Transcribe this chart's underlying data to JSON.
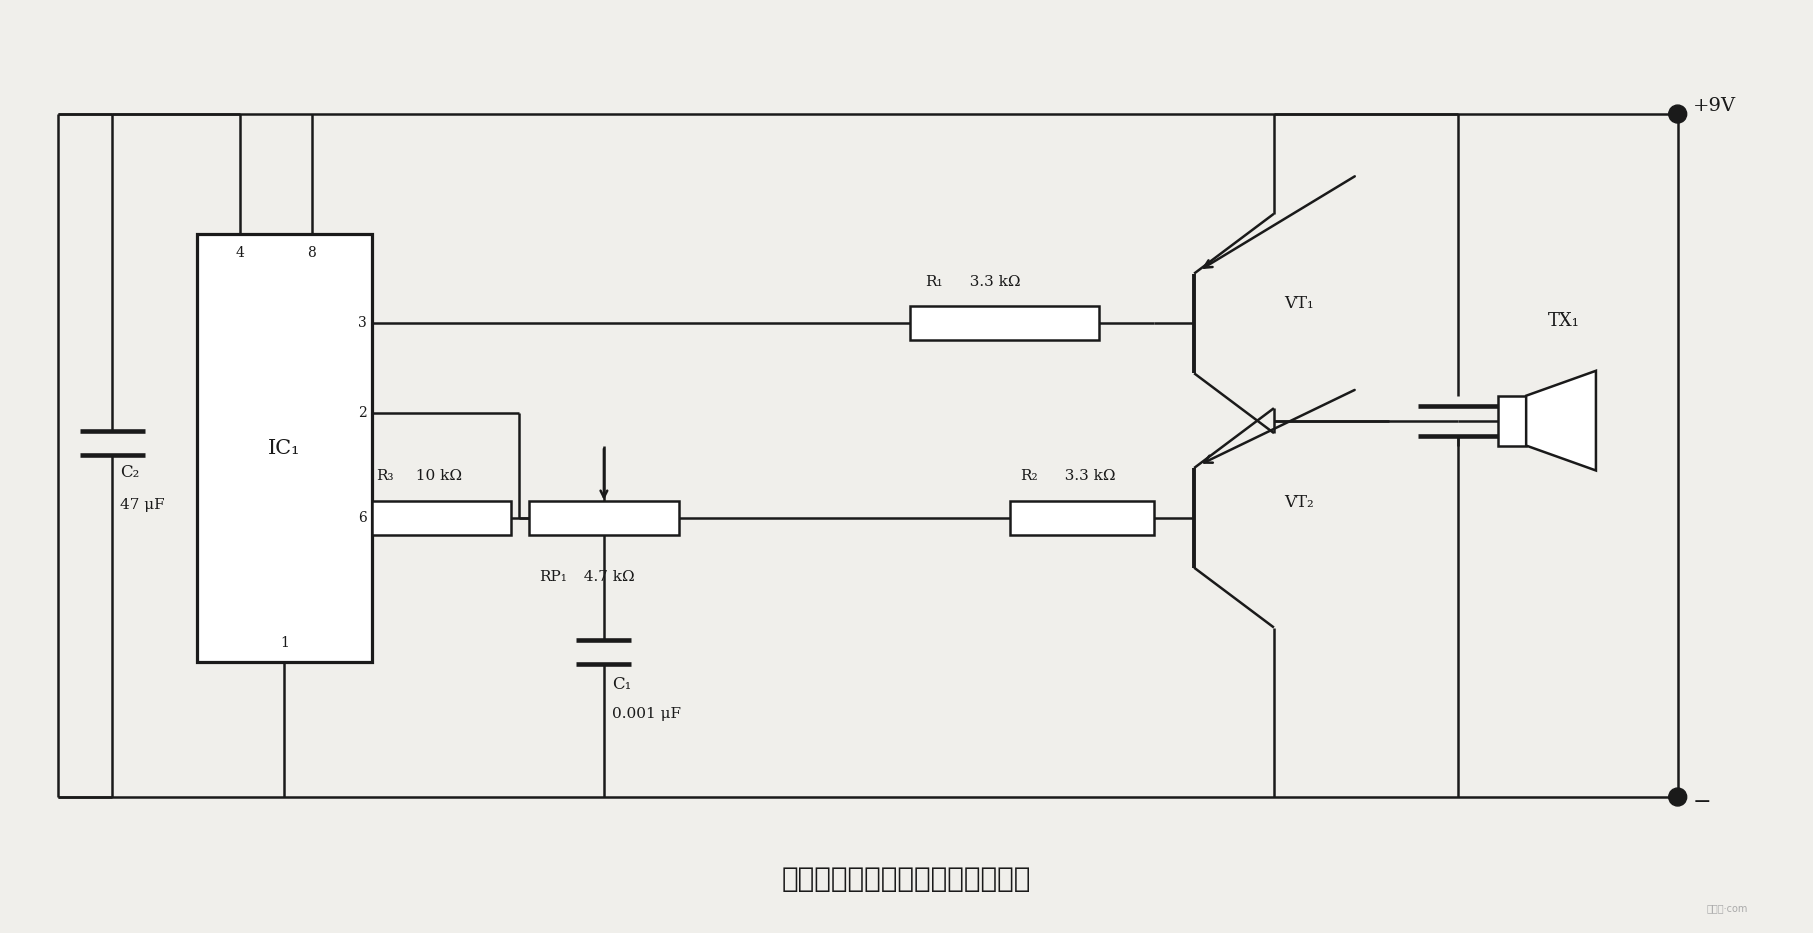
{
  "title": "超声波人体接近探测器发射机电路",
  "title_fontsize": 20,
  "bg_color": "#f0efeb",
  "line_color": "#1a1a1a",
  "lw": 1.8,
  "labels": {
    "IC1": "IC₁",
    "C2_name": "C₂",
    "C2_val": "47 μF",
    "C1_name": "C₁",
    "C1_val": "0.001 μF",
    "R1_name": "R₁",
    "R1_val": "3.3 kΩ",
    "R2_name": "R₂",
    "R2_val": "3.3 kΩ",
    "R3_name": "R₃",
    "R3_val": "10 kΩ",
    "RP1_name": "RP₁",
    "RP1_val": "4.7 kΩ",
    "VT1": "VT₁",
    "VT2": "VT₂",
    "TX1": "TX₁",
    "VCC": "+9V",
    "GND": "−",
    "pin4": "4",
    "pin8": "8",
    "pin3": "3",
    "pin2": "2",
    "pin6": "6",
    "pin1": "1"
  }
}
